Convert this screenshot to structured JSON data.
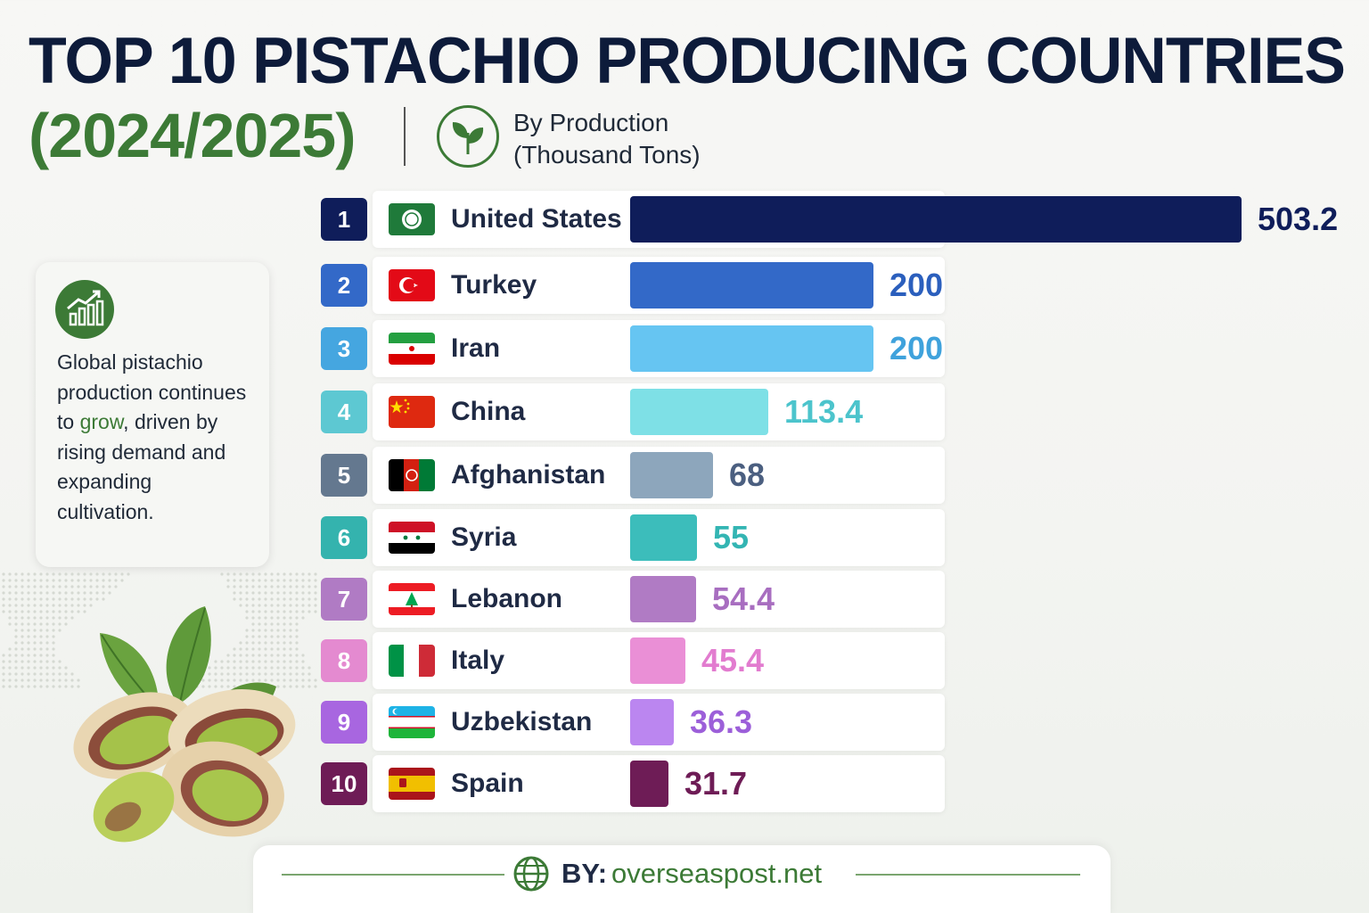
{
  "header": {
    "title_line1": "TOP 10 PISTACHIO PRODUCING COUNTRIES",
    "title_line2": "(2024/2025)",
    "subtitle_line1": "By Production",
    "subtitle_line2": "(Thousand Tons)",
    "icon": "sprout-icon"
  },
  "info_card": {
    "icon": "growth-chart-icon",
    "text_before": "Global pistachio production continues to ",
    "highlight": "grow",
    "text_after": ", driven by rising demand and expanding cultivation."
  },
  "footer": {
    "icon": "globe-icon",
    "by_label": "BY:",
    "site": "overseaspost.net"
  },
  "colors": {
    "title": "#0d1b3a",
    "accent_green": "#3c7a36"
  },
  "chart_data": {
    "type": "bar",
    "orientation": "horizontal",
    "title": "TOP 10 PISTACHIO PRODUCING COUNTRIES (2024/2025)",
    "xlabel": "By Production (Thousand Tons)",
    "ylabel": "",
    "xlim": [
      0,
      503.2
    ],
    "grid": false,
    "legend": "none",
    "ranks": [
      "1",
      "2",
      "3",
      "4",
      "5",
      "6",
      "7",
      "8",
      "9",
      "10"
    ],
    "categories": [
      "United States",
      "Turkey",
      "Iran",
      "China",
      "Afghanistan",
      "Syria",
      "Lebanon",
      "Italy",
      "Uzbekistan",
      "Spain"
    ],
    "values": [
      503.2,
      200,
      200,
      113.4,
      68,
      55,
      54.4,
      45.4,
      36.3,
      31.7
    ],
    "value_labels": [
      "503.2",
      "200",
      "200",
      "113.4",
      "68",
      "55",
      "54.4",
      "45.4",
      "36.3",
      "31.7"
    ],
    "flags": [
      "flag-united-states-icon",
      "flag-turkey-icon",
      "flag-iran-icon",
      "flag-china-icon",
      "flag-afghanistan-icon",
      "flag-syria-icon",
      "flag-lebanon-icon",
      "flag-italy-icon",
      "flag-uzbekistan-icon",
      "flag-spain-icon"
    ],
    "bar_colors": [
      "#0f1d5a",
      "#3369c8",
      "#66c5f2",
      "#7ee0e6",
      "#8da6bc",
      "#3cbdbb",
      "#b07bc4",
      "#ea8fd6",
      "#bb86f0",
      "#6e1c56"
    ],
    "rank_colors": [
      "#0f1d5a",
      "#3369c8",
      "#45a6e0",
      "#5dc8d2",
      "#64788f",
      "#34b3ae",
      "#b07bc4",
      "#e48ad0",
      "#a866e0",
      "#6e1c56"
    ],
    "label_colors": [
      "#0f1d5a",
      "#2b5fbd",
      "#3fa2dc",
      "#4cc4cc",
      "#4b5f80",
      "#33b5b3",
      "#a86ec0",
      "#e27ccf",
      "#9c5fd9",
      "#6e1c56"
    ]
  }
}
